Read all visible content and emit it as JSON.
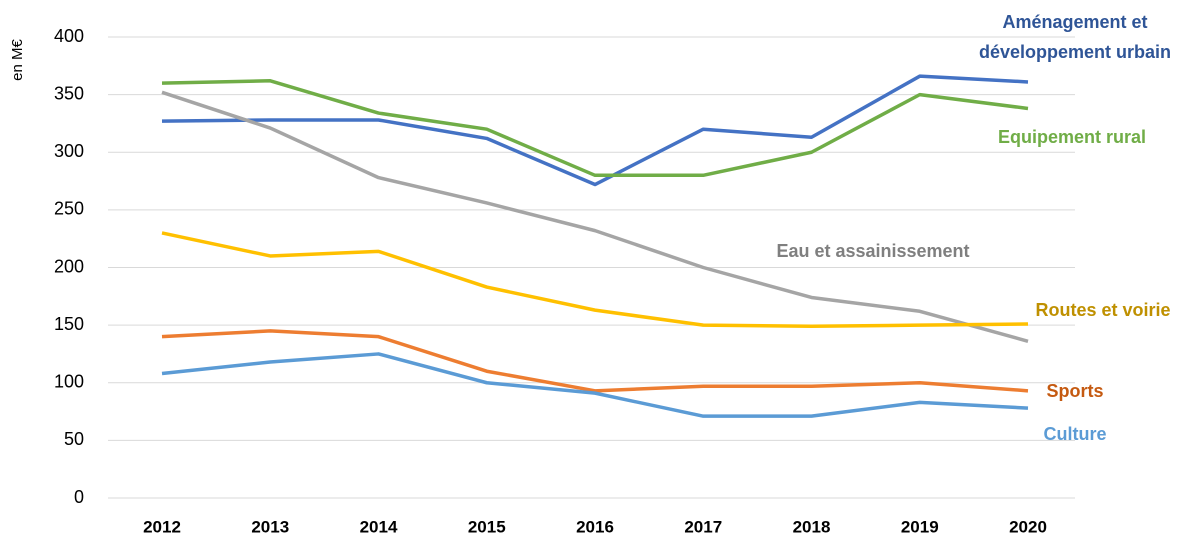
{
  "chart_data": {
    "type": "line",
    "y_label": "en M€",
    "categories": [
      "2012",
      "2013",
      "2014",
      "2015",
      "2016",
      "2017",
      "2018",
      "2019",
      "2020"
    ],
    "ylim": [
      0,
      400
    ],
    "yticks": [
      0,
      50,
      100,
      150,
      200,
      250,
      300,
      350,
      400
    ],
    "grid": true,
    "series": [
      {
        "name": "Aménagement et développement urbain",
        "color": "#4472c4",
        "label_color": "#2f5597",
        "values": [
          327,
          328,
          328,
          312,
          272,
          320,
          313,
          366,
          361
        ]
      },
      {
        "name": "Equipement rural",
        "color": "#70ad47",
        "label_color": "#70ad47",
        "values": [
          360,
          362,
          334,
          320,
          280,
          280,
          300,
          350,
          338
        ]
      },
      {
        "name": "Eau et assainissement",
        "color": "#a5a5a5",
        "label_color": "#7f7f7f",
        "values": [
          352,
          321,
          278,
          256,
          232,
          200,
          174,
          162,
          136
        ]
      },
      {
        "name": "Routes et voirie",
        "color": "#ffc000",
        "label_color": "#bf9000",
        "values": [
          230,
          210,
          214,
          183,
          163,
          150,
          149,
          150,
          151
        ]
      },
      {
        "name": "Sports",
        "color": "#ed7d31",
        "label_color": "#c55a11",
        "values": [
          140,
          145,
          140,
          110,
          93,
          97,
          97,
          100,
          93
        ]
      },
      {
        "name": "Culture",
        "color": "#5b9bd5",
        "label_color": "#5b9bd5",
        "values": [
          108,
          118,
          125,
          100,
          91,
          71,
          71,
          83,
          78
        ]
      }
    ]
  }
}
